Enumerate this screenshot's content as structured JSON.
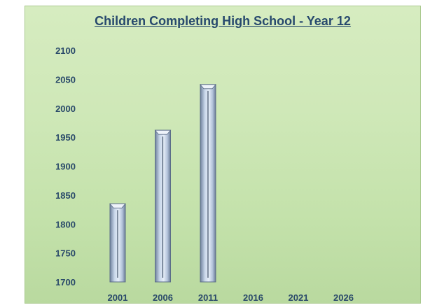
{
  "chart_data": {
    "type": "bar",
    "title": "Children Completing High School - Year 12",
    "xlabel": "",
    "ylabel": "",
    "categories": [
      "2001",
      "2006",
      "2011",
      "2016",
      "2021",
      "2026"
    ],
    "values": [
      1835,
      1962,
      2041,
      null,
      null,
      null
    ],
    "ylim": [
      1700,
      2100
    ],
    "yticks": [
      1700,
      1750,
      1800,
      1850,
      1900,
      1950,
      2000,
      2050,
      2100
    ],
    "grid": false,
    "legend": "none",
    "colors": {
      "bar_light": "#c9d7ea",
      "bar_dark": "#7c8ea8",
      "bar_edge": "#5b6d88",
      "text": "#2a4a6a"
    }
  }
}
